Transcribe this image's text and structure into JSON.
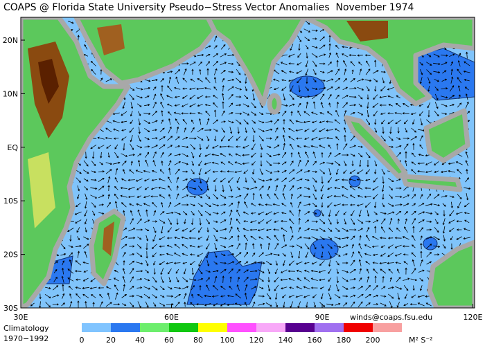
{
  "title": "COAPS @ Florida State University Pseudo−Stress Vector Anomalies  November 1974",
  "latitude_labels": [
    "20N",
    "10N",
    "EQ",
    "10S",
    "20S",
    "30S"
  ],
  "longitude_labels": [
    "30E",
    "60E",
    "90E",
    "120E"
  ],
  "credit": "winds@coaps.fsu.edu",
  "climatology": [
    "Climatology",
    "1970−1992"
  ],
  "colorbar": {
    "levels": [
      0,
      20,
      40,
      60,
      80,
      100,
      120,
      140,
      160,
      180,
      200
    ],
    "colors": [
      "#80c4ff",
      "#2a78f0",
      "#6cee6c",
      "#10c810",
      "#ffff00",
      "#ff50ff",
      "#f8a8f8",
      "#580090",
      "#a070f0",
      "#f00000",
      "#f8a0a0"
    ],
    "units": "M² S⁻²"
  }
}
